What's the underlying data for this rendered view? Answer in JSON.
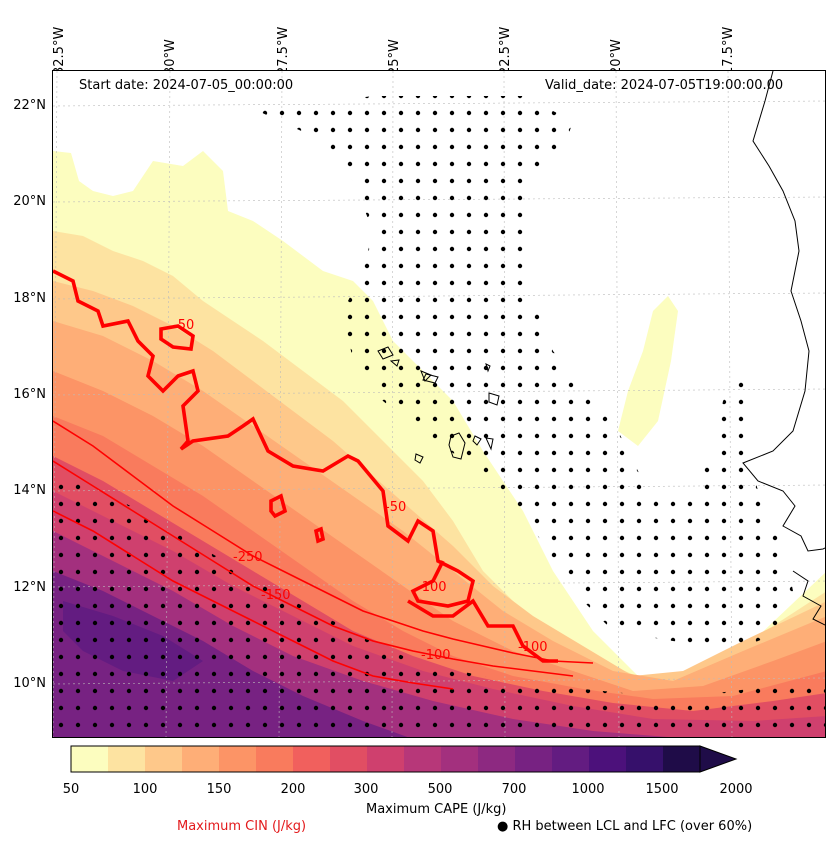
{
  "header": {
    "start_date": "Start date: 2024-07-05_00:00:00",
    "valid_date": "Valid_date: 2024-07-05T19:00:00.00"
  },
  "axes": {
    "longitude_labels": [
      "32.5°W",
      "30°W",
      "27.5°W",
      "25°W",
      "22.5°W",
      "20°W",
      "17.5°W"
    ],
    "latitude_labels": [
      "22°N",
      "20°N",
      "18°N",
      "16°N",
      "14°N",
      "12°N",
      "10°N"
    ]
  },
  "contours": {
    "cin_labels": [
      "-50",
      "-50",
      "-250",
      "-150",
      "-100",
      "-100",
      "-100"
    ]
  },
  "colorbar": {
    "title": "Maximum CAPE (J/kg)",
    "ticks": [
      "50",
      "100",
      "150",
      "200",
      "300",
      "500",
      "700",
      "1000",
      "1500",
      "2000"
    ],
    "colors": [
      "#fcfdbf",
      "#fde3a1",
      "#fec88a",
      "#feae77",
      "#fc9466",
      "#f97b5d",
      "#f1605d",
      "#e14e63",
      "#cf406e",
      "#b73779",
      "#a3307e",
      "#8d2981",
      "#772282",
      "#631c81",
      "#4c117b",
      "#36106b",
      "#1f0c48"
    ]
  },
  "legend": {
    "cin": "Maximum CIN (J/kg)",
    "rh": "● RH between LCL and LFC (over 60%)"
  },
  "colors": {
    "cin_contour": "#ff0000",
    "coastline": "#000000",
    "gridline": "#bbbbbb"
  }
}
